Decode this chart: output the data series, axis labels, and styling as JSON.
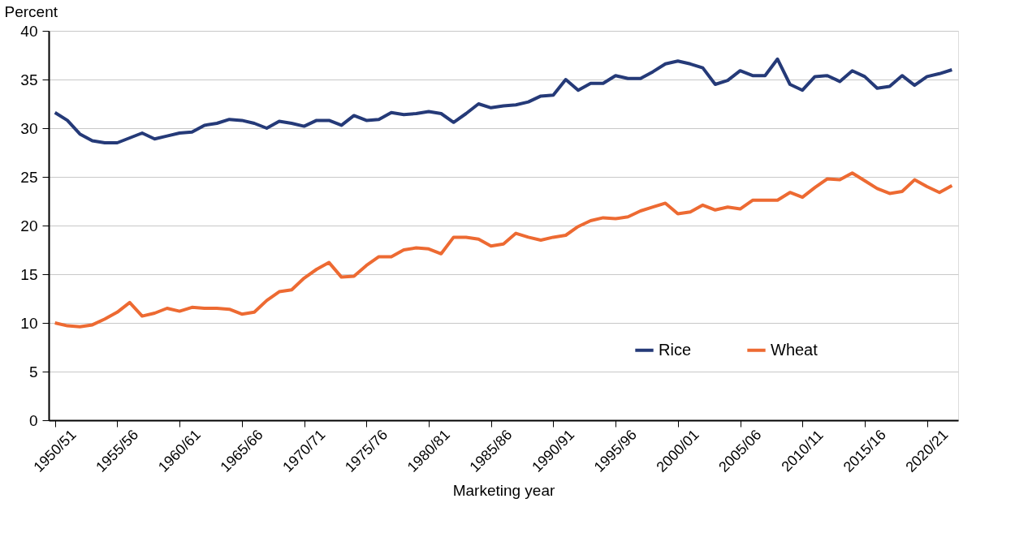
{
  "chart_data": {
    "type": "line",
    "ylabel": "Percent",
    "xlabel": "Marketing year",
    "categories": [
      "1950/51",
      null,
      null,
      null,
      null,
      "1955/56",
      null,
      null,
      null,
      null,
      "1960/61",
      null,
      null,
      null,
      null,
      "1965/66",
      null,
      null,
      null,
      null,
      "1970/71",
      null,
      null,
      null,
      null,
      "1975/76",
      null,
      null,
      null,
      null,
      "1980/81",
      null,
      null,
      null,
      null,
      "1985/86",
      null,
      null,
      null,
      null,
      "1990/91",
      null,
      null,
      null,
      null,
      "1995/96",
      null,
      null,
      null,
      null,
      "2000/01",
      null,
      null,
      null,
      null,
      "2005/06",
      null,
      null,
      null,
      null,
      "2010/11",
      null,
      null,
      null,
      null,
      "2015/16",
      null,
      null,
      null,
      null,
      "2020/21",
      null,
      null
    ],
    "series": [
      {
        "name": "Rice",
        "color": "#253a78",
        "values": [
          31.6,
          30.8,
          29.4,
          28.7,
          28.5,
          28.5,
          29.0,
          29.5,
          28.9,
          29.2,
          29.5,
          29.6,
          30.3,
          30.5,
          30.9,
          30.8,
          30.5,
          30.0,
          30.7,
          30.5,
          30.2,
          30.8,
          30.8,
          30.3,
          31.3,
          30.8,
          30.9,
          31.6,
          31.4,
          31.5,
          31.7,
          31.5,
          30.6,
          31.5,
          32.5,
          32.1,
          32.3,
          32.4,
          32.7,
          33.3,
          33.4,
          35.0,
          33.9,
          34.6,
          34.6,
          35.4,
          35.1,
          35.1,
          35.8,
          36.6,
          36.9,
          36.6,
          36.2,
          34.5,
          34.9,
          35.9,
          35.4,
          35.4,
          37.1,
          34.5,
          33.9,
          35.3,
          35.4,
          34.8,
          35.9,
          35.3,
          34.1,
          34.3,
          35.4,
          34.4,
          35.3,
          35.6,
          36.0
        ]
      },
      {
        "name": "Wheat",
        "color": "#ed6a32",
        "values": [
          10.0,
          9.7,
          9.6,
          9.8,
          10.4,
          11.1,
          12.1,
          10.7,
          11.0,
          11.5,
          11.2,
          11.6,
          11.5,
          11.5,
          11.4,
          10.9,
          11.1,
          12.3,
          13.2,
          13.4,
          14.6,
          15.5,
          16.2,
          14.7,
          14.8,
          15.9,
          16.8,
          16.8,
          17.5,
          17.7,
          17.6,
          17.1,
          18.8,
          18.8,
          18.6,
          17.9,
          18.1,
          19.2,
          18.8,
          18.5,
          18.8,
          19.0,
          19.9,
          20.5,
          20.8,
          20.7,
          20.9,
          21.5,
          21.9,
          22.3,
          21.2,
          21.4,
          22.1,
          21.6,
          21.9,
          21.7,
          22.6,
          22.6,
          22.6,
          23.4,
          22.9,
          23.9,
          24.8,
          24.7,
          25.4,
          24.6,
          23.8,
          23.3,
          23.5,
          24.7,
          24.0,
          23.4,
          24.1
        ]
      }
    ],
    "ylim": [
      0,
      40
    ],
    "yticks": [
      0,
      5,
      10,
      15,
      20,
      25,
      30,
      35,
      40
    ],
    "grid": "y",
    "legend": "bottom right",
    "line_style": "solid",
    "marker": "none"
  }
}
